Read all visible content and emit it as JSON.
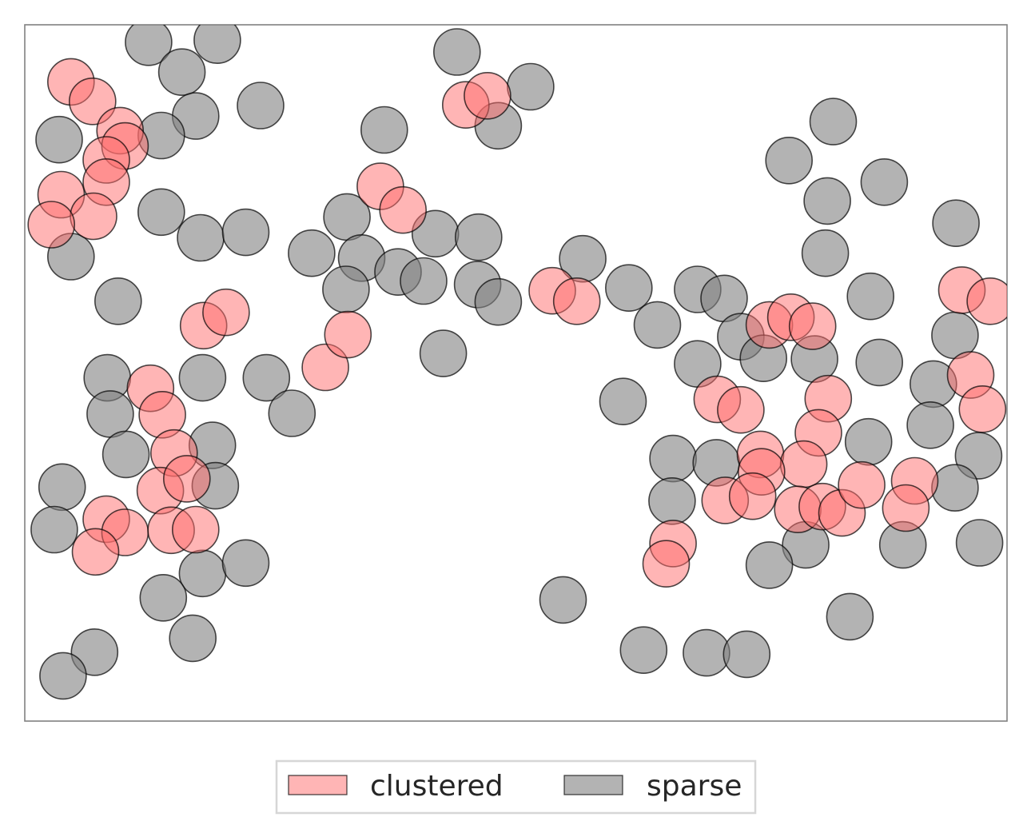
{
  "chart_data": {
    "type": "scatter",
    "title": "",
    "xlabel": "",
    "ylabel": "",
    "xlim": [
      0,
      1
    ],
    "ylim": [
      0,
      1
    ],
    "grid": false,
    "axes_visible": false,
    "legend_position": "bottom-center",
    "series": [
      {
        "name": "clustered",
        "color": "#ff6b6b",
        "points": [
          [
            0.047,
            0.918
          ],
          [
            0.069,
            0.89
          ],
          [
            0.097,
            0.848
          ],
          [
            0.102,
            0.826
          ],
          [
            0.083,
            0.806
          ],
          [
            0.083,
            0.774
          ],
          [
            0.037,
            0.756
          ],
          [
            0.07,
            0.725
          ],
          [
            0.027,
            0.713
          ],
          [
            0.362,
            0.768
          ],
          [
            0.385,
            0.734
          ],
          [
            0.449,
            0.885
          ],
          [
            0.471,
            0.898
          ],
          [
            0.182,
            0.568
          ],
          [
            0.205,
            0.587
          ],
          [
            0.306,
            0.508
          ],
          [
            0.329,
            0.555
          ],
          [
            0.128,
            0.478
          ],
          [
            0.14,
            0.44
          ],
          [
            0.152,
            0.385
          ],
          [
            0.138,
            0.331
          ],
          [
            0.165,
            0.348
          ],
          [
            0.083,
            0.29
          ],
          [
            0.102,
            0.271
          ],
          [
            0.072,
            0.243
          ],
          [
            0.149,
            0.274
          ],
          [
            0.174,
            0.275
          ],
          [
            0.537,
            0.618
          ],
          [
            0.562,
            0.603
          ],
          [
            0.758,
            0.569
          ],
          [
            0.78,
            0.58
          ],
          [
            0.802,
            0.567
          ],
          [
            0.705,
            0.462
          ],
          [
            0.729,
            0.447
          ],
          [
            0.818,
            0.463
          ],
          [
            0.808,
            0.414
          ],
          [
            0.749,
            0.383
          ],
          [
            0.793,
            0.369
          ],
          [
            0.75,
            0.358
          ],
          [
            0.713,
            0.317
          ],
          [
            0.741,
            0.323
          ],
          [
            0.787,
            0.304
          ],
          [
            0.812,
            0.308
          ],
          [
            0.832,
            0.299
          ],
          [
            0.852,
            0.339
          ],
          [
            0.906,
            0.345
          ],
          [
            0.897,
            0.306
          ],
          [
            0.954,
            0.619
          ],
          [
            0.983,
            0.603
          ],
          [
            0.963,
            0.497
          ],
          [
            0.975,
            0.448
          ],
          [
            0.66,
            0.255
          ],
          [
            0.653,
            0.226
          ]
        ]
      },
      {
        "name": "sparse",
        "color": "#808080",
        "points": [
          [
            0.126,
            0.975
          ],
          [
            0.196,
            0.978
          ],
          [
            0.16,
            0.932
          ],
          [
            0.174,
            0.869
          ],
          [
            0.24,
            0.884
          ],
          [
            0.035,
            0.835
          ],
          [
            0.139,
            0.841
          ],
          [
            0.139,
            0.731
          ],
          [
            0.179,
            0.694
          ],
          [
            0.225,
            0.702
          ],
          [
            0.047,
            0.667
          ],
          [
            0.095,
            0.603
          ],
          [
            0.084,
            0.493
          ],
          [
            0.181,
            0.493
          ],
          [
            0.087,
            0.441
          ],
          [
            0.246,
            0.493
          ],
          [
            0.272,
            0.442
          ],
          [
            0.103,
            0.383
          ],
          [
            0.191,
            0.396
          ],
          [
            0.194,
            0.338
          ],
          [
            0.038,
            0.336
          ],
          [
            0.03,
            0.275
          ],
          [
            0.181,
            0.212
          ],
          [
            0.225,
            0.227
          ],
          [
            0.141,
            0.177
          ],
          [
            0.171,
            0.119
          ],
          [
            0.071,
            0.099
          ],
          [
            0.039,
            0.065
          ],
          [
            0.44,
            0.961
          ],
          [
            0.515,
            0.911
          ],
          [
            0.366,
            0.849
          ],
          [
            0.482,
            0.855
          ],
          [
            0.328,
            0.724
          ],
          [
            0.418,
            0.7
          ],
          [
            0.292,
            0.672
          ],
          [
            0.343,
            0.665
          ],
          [
            0.38,
            0.645
          ],
          [
            0.327,
            0.62
          ],
          [
            0.406,
            0.632
          ],
          [
            0.462,
            0.695
          ],
          [
            0.461,
            0.627
          ],
          [
            0.482,
            0.602
          ],
          [
            0.426,
            0.528
          ],
          [
            0.568,
            0.664
          ],
          [
            0.615,
            0.622
          ],
          [
            0.644,
            0.569
          ],
          [
            0.685,
            0.62
          ],
          [
            0.712,
            0.607
          ],
          [
            0.823,
            0.861
          ],
          [
            0.778,
            0.805
          ],
          [
            0.817,
            0.747
          ],
          [
            0.875,
            0.774
          ],
          [
            0.815,
            0.672
          ],
          [
            0.948,
            0.715
          ],
          [
            0.861,
            0.61
          ],
          [
            0.685,
            0.513
          ],
          [
            0.729,
            0.552
          ],
          [
            0.752,
            0.521
          ],
          [
            0.804,
            0.52
          ],
          [
            0.87,
            0.515
          ],
          [
            0.925,
            0.484
          ],
          [
            0.922,
            0.425
          ],
          [
            0.947,
            0.554
          ],
          [
            0.609,
            0.459
          ],
          [
            0.66,
            0.377
          ],
          [
            0.704,
            0.371
          ],
          [
            0.659,
            0.316
          ],
          [
            0.859,
            0.401
          ],
          [
            0.971,
            0.381
          ],
          [
            0.947,
            0.335
          ],
          [
            0.795,
            0.253
          ],
          [
            0.894,
            0.253
          ],
          [
            0.972,
            0.256
          ],
          [
            0.758,
            0.224
          ],
          [
            0.548,
            0.174
          ],
          [
            0.84,
            0.15
          ],
          [
            0.63,
            0.102
          ],
          [
            0.694,
            0.098
          ],
          [
            0.735,
            0.096
          ]
        ]
      }
    ]
  }
}
